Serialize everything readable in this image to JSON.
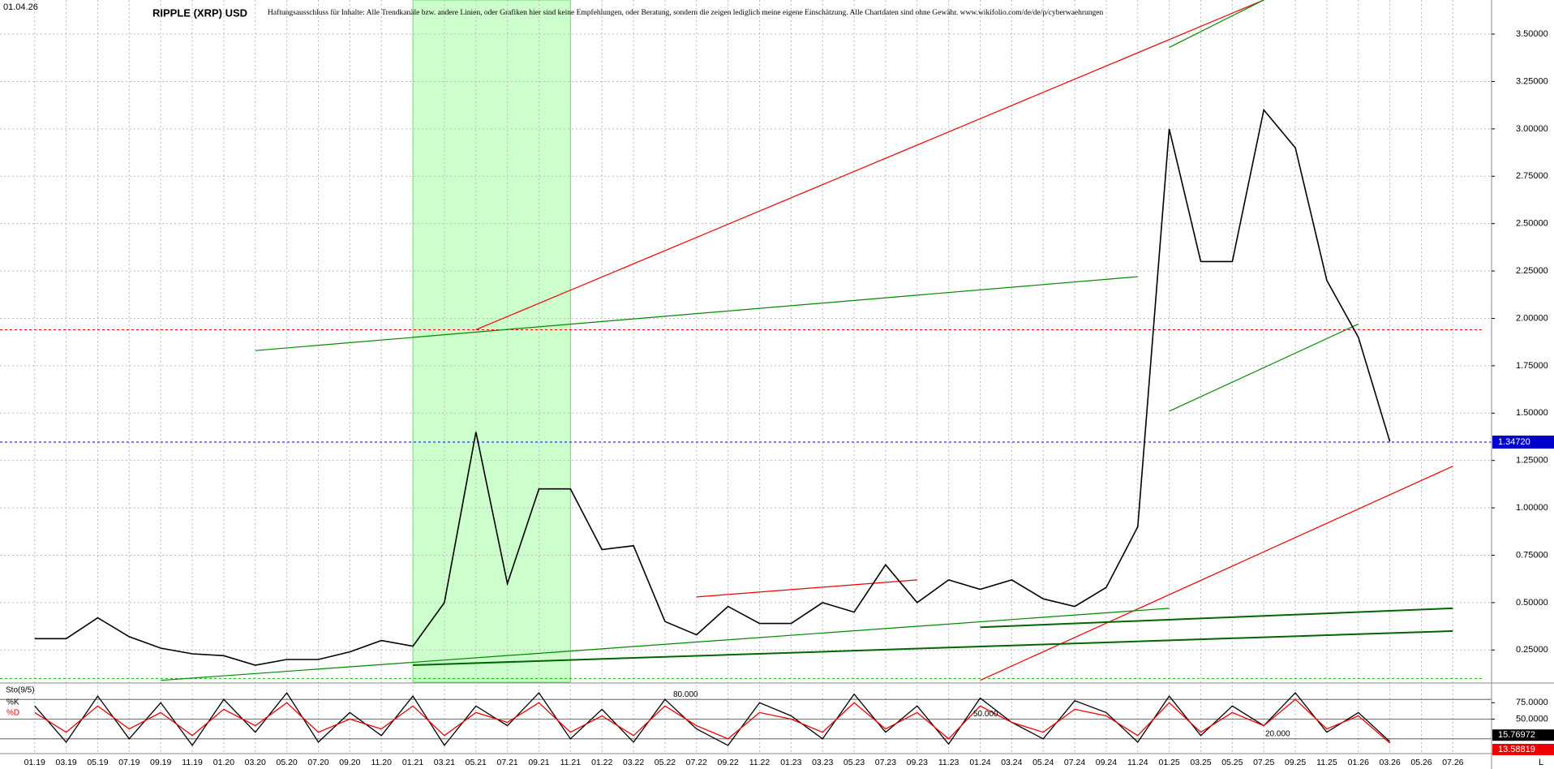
{
  "chart_data": {
    "type": "line",
    "title": "RIPPLE (XRP) USD",
    "subtitle": "Haftungsausschluss für Inhalte: Alle Trendkanäle bzw. andere Linien, oder Grafiken hier sind keine Empfehlungen, oder Beratung, sondern die zeigen lediglich meine eigene Einschätzung. Alle Chartdaten sind ohne Gewähr. www.wikifolio.com/de/de/p/cyberwaehrungen",
    "date": "01.04.26",
    "categories": [
      "01.19",
      "03.19",
      "05.19",
      "07.19",
      "09.19",
      "11.19",
      "01.20",
      "03.20",
      "05.20",
      "07.20",
      "09.20",
      "11.20",
      "01.21",
      "03.21",
      "05.21",
      "07.21",
      "09.21",
      "11.21",
      "01.22",
      "03.22",
      "05.22",
      "07.22",
      "09.22",
      "11.22",
      "01.23",
      "03.23",
      "05.23",
      "07.23",
      "09.23",
      "11.23",
      "01.24",
      "03.24",
      "05.24",
      "07.24",
      "09.24",
      "11.24",
      "01.25",
      "03.25",
      "05.25",
      "07.25",
      "09.25",
      "11.25",
      "01.26",
      "03.26",
      "05.26",
      "07.26"
    ],
    "values": [
      0.31,
      0.31,
      0.42,
      0.32,
      0.26,
      0.23,
      0.22,
      0.17,
      0.2,
      0.2,
      0.24,
      0.3,
      0.27,
      0.5,
      1.4,
      0.6,
      1.1,
      1.1,
      0.78,
      0.8,
      0.4,
      0.33,
      0.48,
      0.39,
      0.39,
      0.5,
      0.45,
      0.7,
      0.5,
      0.62,
      0.57,
      0.62,
      0.52,
      0.48,
      0.58,
      0.9,
      3.0,
      2.3,
      2.3,
      3.1,
      2.9,
      2.2,
      1.9,
      1.35,
      null,
      null
    ],
    "color": "#000000",
    "ylim": [
      0.08,
      3.68
    ],
    "yticks": [
      {
        "value": 0.25,
        "label": "0.25000"
      },
      {
        "value": 0.5,
        "label": "0.50000"
      },
      {
        "value": 0.75,
        "label": "0.75000"
      },
      {
        "value": 1,
        "label": "1.00000"
      },
      {
        "value": 1.25,
        "label": "1.25000"
      },
      {
        "value": 1.5,
        "label": "1.50000"
      },
      {
        "value": 1.75,
        "label": "1.75000"
      },
      {
        "value": 2,
        "label": "2.00000"
      },
      {
        "value": 2.25,
        "label": "2.25000"
      },
      {
        "value": 2.5,
        "label": "2.50000"
      },
      {
        "value": 2.75,
        "label": "2.75000"
      },
      {
        "value": 3,
        "label": "3.00000"
      },
      {
        "value": 3.25,
        "label": "3.25000"
      },
      {
        "value": 3.5,
        "label": "3.50000"
      }
    ],
    "grid": true,
    "last_price": {
      "value": 1.3472,
      "label": "1.34720",
      "color": "#0000cc"
    },
    "levels": [
      {
        "value": 1.94,
        "color": "#ee0000"
      },
      {
        "value": 0.1,
        "color": "#00bb00"
      }
    ],
    "shaded_range": {
      "x": [
        "01.21",
        "11.21"
      ],
      "color": "#ccffcc"
    },
    "trendlines": [
      {
        "x": [
          "05.21",
          "07.25"
        ],
        "values": [
          1.94,
          3.68
        ],
        "color": "#ee0000"
      },
      {
        "x": [
          "03.20",
          "11.24"
        ],
        "values": [
          1.83,
          2.22
        ],
        "color": "#008800"
      },
      {
        "x": [
          "01.24",
          "07.26"
        ],
        "values": [
          0.09,
          1.22
        ],
        "color": "#ee0000"
      },
      {
        "x": [
          "09.19",
          "01.25"
        ],
        "values": [
          0.09,
          0.47
        ],
        "color": "#008800"
      },
      {
        "x": [
          "01.24",
          "07.26"
        ],
        "values": [
          0.37,
          0.47
        ],
        "color": "#006600"
      },
      {
        "x": [
          "01.21",
          "07.26"
        ],
        "values": [
          0.17,
          0.35
        ],
        "color": "#006600"
      },
      {
        "x": [
          "01.25",
          "01.26"
        ],
        "values": [
          1.51,
          1.97
        ],
        "color": "#008800"
      },
      {
        "x": [
          "01.25",
          "07.25"
        ],
        "values": [
          3.43,
          3.68
        ],
        "color": "#008800"
      },
      {
        "x": [
          "07.22",
          "09.23"
        ],
        "values": [
          0.53,
          0.62
        ],
        "color": "#ee0000"
      }
    ],
    "stochastic": {
      "name": "Sto(9/5)",
      "ylim": [
        0,
        100
      ],
      "yticks": [
        {
          "value": 75,
          "label": "75.0000"
        },
        {
          "value": 50,
          "label": "50.0000"
        }
      ],
      "levels": [
        {
          "value": 80,
          "label": "80.000"
        },
        {
          "value": 50,
          "label": "50.000"
        },
        {
          "value": 20,
          "label": "20.000"
        }
      ],
      "series": [
        {
          "name": "%K",
          "color": "#000000",
          "values": [
            70,
            15,
            85,
            20,
            75,
            10,
            80,
            30,
            90,
            15,
            60,
            25,
            85,
            10,
            70,
            40,
            90,
            20,
            65,
            15,
            80,
            35,
            10,
            75,
            55,
            20,
            88,
            30,
            70,
            12,
            82,
            45,
            20,
            78,
            60,
            15,
            85,
            25,
            70,
            40,
            90,
            30,
            60,
            15.76972,
            null,
            null
          ]
        },
        {
          "name": "%D",
          "color": "#ee0000",
          "values": [
            60,
            30,
            70,
            35,
            60,
            25,
            65,
            40,
            75,
            30,
            50,
            35,
            70,
            25,
            60,
            45,
            75,
            30,
            55,
            25,
            70,
            40,
            20,
            60,
            50,
            30,
            75,
            35,
            60,
            20,
            70,
            45,
            30,
            65,
            55,
            25,
            75,
            30,
            60,
            40,
            80,
            35,
            55,
            13.58819,
            null,
            null
          ]
        }
      ]
    },
    "corner_label": "L"
  }
}
